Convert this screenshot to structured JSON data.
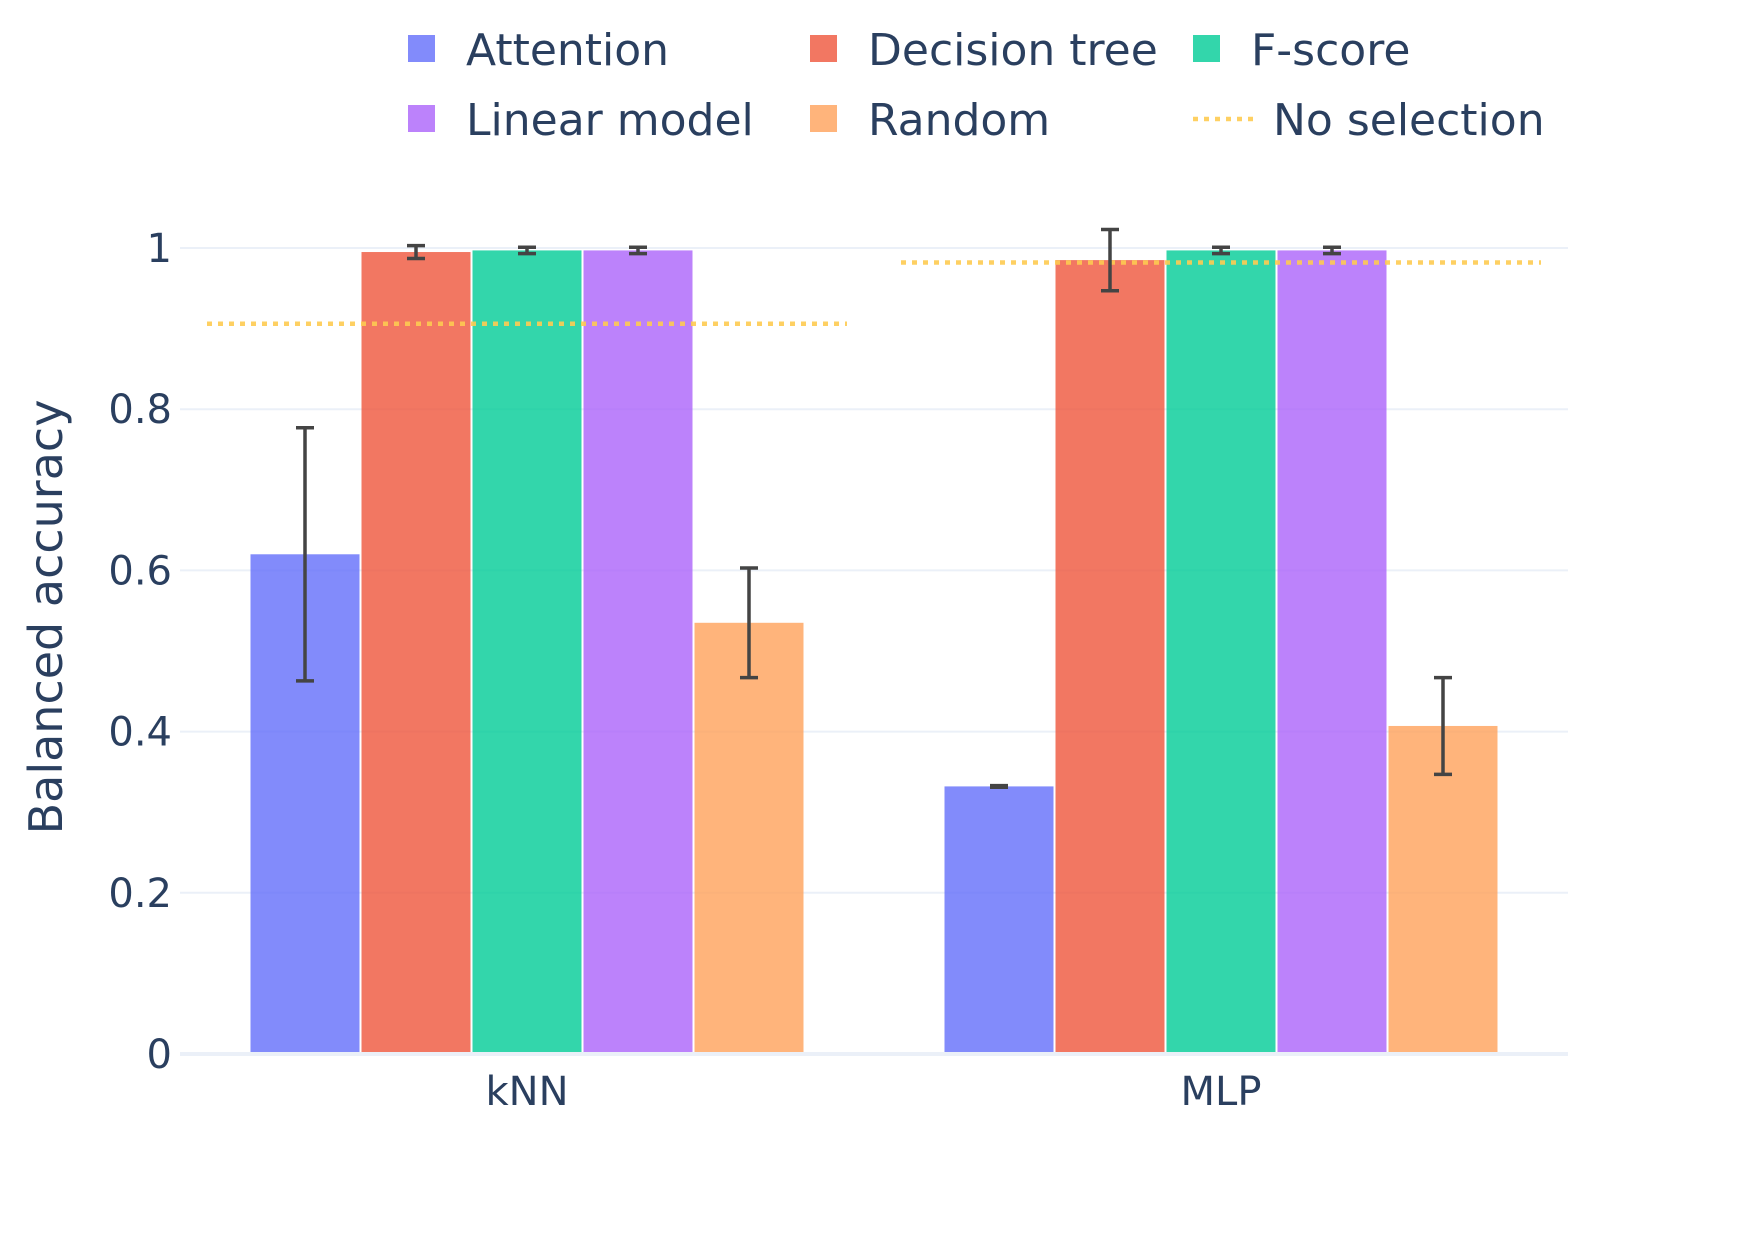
{
  "chart_data": {
    "type": "bar",
    "categories": [
      "kNN",
      "MLP"
    ],
    "ylabel": "Balanced accuracy",
    "xlabel": "",
    "ylim": [
      0,
      1.05
    ],
    "yticks": [
      0,
      0.2,
      0.4,
      0.6,
      0.8,
      1
    ],
    "ytick_labels": [
      "0",
      "0.2",
      "0.4",
      "0.6",
      "0.8",
      "1"
    ],
    "grid": true,
    "legend_position": "top",
    "series": [
      {
        "name": "Attention",
        "color": "#636efa",
        "values": [
          0.62,
          0.332
        ],
        "error": [
          0.157,
          0.001
        ]
      },
      {
        "name": "Decision tree",
        "color": "#ef553b",
        "values": [
          0.995,
          0.985
        ],
        "error": [
          0.008,
          0.038
        ]
      },
      {
        "name": "F-score",
        "color": "#00cc96",
        "values": [
          0.997,
          0.997
        ],
        "error": [
          0.004,
          0.004
        ]
      },
      {
        "name": "Linear model",
        "color": "#ab63fa",
        "values": [
          0.997,
          0.997
        ],
        "error": [
          0.004,
          0.004
        ]
      },
      {
        "name": "Random",
        "color": "#ffa15a",
        "values": [
          0.535,
          0.407
        ],
        "error": [
          0.068,
          0.06
        ]
      }
    ],
    "reference_lines": [
      {
        "name": "No selection",
        "color": "#fecb52",
        "style": "dotted",
        "values": [
          0.906,
          0.982
        ]
      }
    ]
  }
}
